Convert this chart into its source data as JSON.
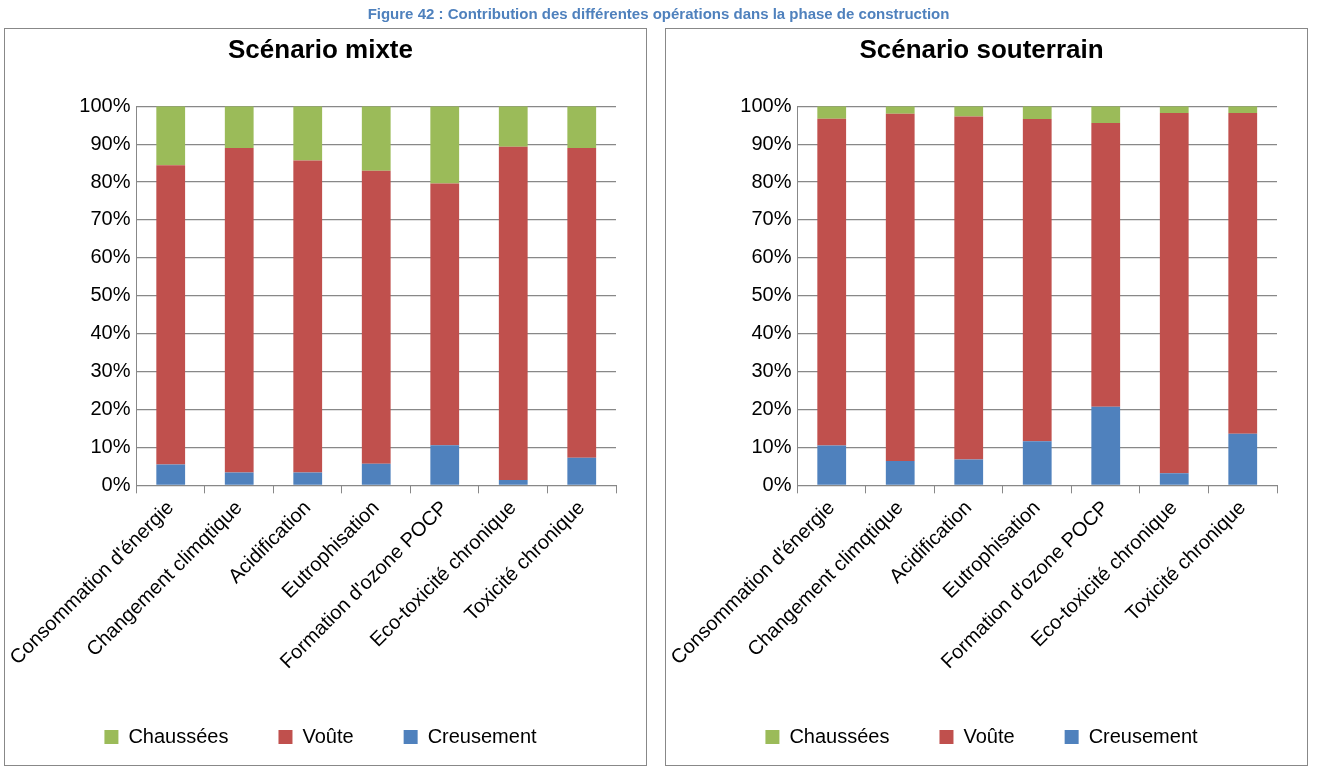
{
  "chart_data": [
    {
      "type": "bar",
      "title": "Scénario mixte",
      "annotations": [
        "Figure 42 : Contribution des différentes opérations dans la phase de construction"
      ],
      "stacked": true,
      "grid": "y",
      "legend": "bottom",
      "categories": [
        "Consommation d'énergie",
        "Changement climqtique",
        "Acidification",
        "Eutrophisation",
        "Formation d'ozone POCP",
        "Eco-toxicité chronique",
        "Toxicité chronique"
      ],
      "series": [
        {
          "name": "Creusement",
          "color": "#4f81bd",
          "values": [
            5.5,
            3.4,
            3.4,
            5.7,
            10.6,
            1.4,
            7.3
          ]
        },
        {
          "name": "Voûte",
          "color": "#c0504d",
          "values": [
            78.9,
            85.6,
            82.3,
            77.3,
            69.0,
            87.9,
            81.7
          ]
        },
        {
          "name": "Chaussées",
          "color": "#9bbb59",
          "values": [
            15.6,
            11.0,
            14.3,
            17.0,
            20.4,
            10.7,
            11.0
          ]
        }
      ],
      "ylim": [
        0,
        100
      ],
      "yticks": [
        {
          "value": 0,
          "label": "0%"
        },
        {
          "value": 10,
          "label": "10%"
        },
        {
          "value": 20,
          "label": "20%"
        },
        {
          "value": 30,
          "label": "30%"
        },
        {
          "value": 40,
          "label": "40%"
        },
        {
          "value": 50,
          "label": "50%"
        },
        {
          "value": 60,
          "label": "60%"
        },
        {
          "value": 70,
          "label": "70%"
        },
        {
          "value": 80,
          "label": "80%"
        },
        {
          "value": 90,
          "label": "90%"
        },
        {
          "value": 100,
          "label": "100%"
        }
      ]
    },
    {
      "type": "bar",
      "title": "Scénario souterrain",
      "stacked": true,
      "grid": "y",
      "legend": "bottom",
      "categories": [
        "Consommation d'énergie",
        "Changement climqtique",
        "Acidification",
        "Eutrophisation",
        "Formation d'ozone POCP",
        "Eco-toxicité chronique",
        "Toxicité chronique"
      ],
      "series": [
        {
          "name": "Creusement",
          "color": "#4f81bd",
          "values": [
            10.5,
            6.4,
            6.8,
            11.6,
            20.7,
            3.2,
            13.6
          ]
        },
        {
          "name": "Voûte",
          "color": "#c0504d",
          "values": [
            86.2,
            91.6,
            90.5,
            85.0,
            74.9,
            95.0,
            84.6
          ]
        },
        {
          "name": "Chaussées",
          "color": "#9bbb59",
          "values": [
            3.3,
            2.0,
            2.7,
            3.4,
            4.4,
            1.8,
            1.8
          ]
        }
      ],
      "ylim": [
        0,
        100
      ],
      "yticks": [
        {
          "value": 0,
          "label": "0%"
        },
        {
          "value": 10,
          "label": "10%"
        },
        {
          "value": 20,
          "label": "20%"
        },
        {
          "value": 30,
          "label": "30%"
        },
        {
          "value": 40,
          "label": "40%"
        },
        {
          "value": 50,
          "label": "50%"
        },
        {
          "value": 60,
          "label": "60%"
        },
        {
          "value": 70,
          "label": "70%"
        },
        {
          "value": 80,
          "label": "80%"
        },
        {
          "value": 90,
          "label": "90%"
        },
        {
          "value": 100,
          "label": "100%"
        }
      ]
    }
  ]
}
